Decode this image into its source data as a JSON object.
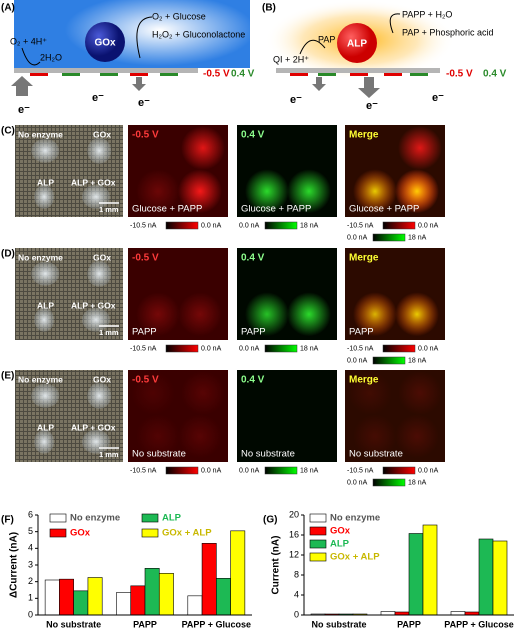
{
  "schematic_a": {
    "label": "(A)",
    "enzyme": "GOx",
    "reaction_top": "O₂ + Glucose",
    "reaction_bottom": "H₂O₂ + Gluconolactone",
    "reactant_left": "O₂ + 4H⁺",
    "product_left": "2H₂O",
    "potential_red": "-0.5 V",
    "potential_green": "0.4 V",
    "electrons": [
      "e⁻",
      "e⁻",
      "e⁻"
    ]
  },
  "schematic_b": {
    "label": "(B)",
    "enzyme": "ALP",
    "reaction_top": "PAPP + H₂O",
    "reaction_bottom": "PAP + Phosphoric acid",
    "intermediate": "PAP",
    "reactant_left": "QI + 2H⁺",
    "potential_red": "-0.5 V",
    "potential_green": "0.4 V",
    "electrons": [
      "e⁻",
      "e⁻",
      "e⁻"
    ]
  },
  "image_rows": [
    {
      "label": "(C)",
      "photo_labels": [
        "No enzyme",
        "GOx",
        "ALP",
        "ALP + GOx"
      ],
      "scale_bar": "1 mm",
      "panel_titles": [
        "-0.5 V",
        "0.4 V",
        "Merge"
      ],
      "substrate": "Glucose + PAPP",
      "colorbar_red": [
        "-10.5 nA",
        "0.0 nA"
      ],
      "colorbar_green": [
        "0.0 nA",
        "18 nA"
      ]
    },
    {
      "label": "(D)",
      "photo_labels": [
        "No enzyme",
        "GOx",
        "ALP",
        "ALP + GOx"
      ],
      "scale_bar": "1 mm",
      "panel_titles": [
        "-0.5 V",
        "0.4 V",
        "Merge"
      ],
      "substrate": "PAPP",
      "colorbar_red": [
        "-10.5 nA",
        "0.0 nA"
      ],
      "colorbar_green": [
        "0.0 nA",
        "18 nA"
      ]
    },
    {
      "label": "(E)",
      "photo_labels": [
        "No enzyme",
        "GOx",
        "ALP",
        "ALP + GOx"
      ],
      "scale_bar": "1 mm",
      "panel_titles": [
        "-0.5 V",
        "0.4 V",
        "Merge"
      ],
      "substrate": "No substrate",
      "colorbar_red": [
        "-10.5 nA",
        "0.0 nA"
      ],
      "colorbar_green": [
        "0.0 nA",
        "18 nA"
      ]
    }
  ],
  "chart_data": [
    {
      "type": "bar",
      "label": "(F)",
      "y_label": "ΔCurrent (nA)",
      "categories": [
        "No substrate",
        "PAPP",
        "PAPP + Glucose"
      ],
      "series": [
        {
          "name": "No enzyme",
          "color": "#ffffff",
          "values": [
            2.1,
            1.35,
            1.15
          ]
        },
        {
          "name": "GOx",
          "color": "#ff0000",
          "values": [
            2.15,
            1.75,
            4.3
          ]
        },
        {
          "name": "ALP",
          "color": "#1db954",
          "values": [
            1.45,
            2.8,
            2.2
          ]
        },
        {
          "name": "GOx + ALP",
          "color": "#ffff00",
          "values": [
            2.25,
            2.5,
            5.05
          ]
        }
      ],
      "ylim": [
        0,
        6
      ],
      "yticks": [
        0,
        1,
        2,
        3,
        4,
        5,
        6
      ],
      "legend": "top",
      "legend_columns": 2
    },
    {
      "type": "bar",
      "label": "(G)",
      "y_label": "Current (nA)",
      "categories": [
        "No substrate",
        "PAPP",
        "PAPP + Glucose"
      ],
      "series": [
        {
          "name": "No enzyme",
          "color": "#ffffff",
          "values": [
            0.2,
            0.7,
            0.7
          ]
        },
        {
          "name": "GOx",
          "color": "#ff0000",
          "values": [
            0.2,
            0.6,
            0.6
          ]
        },
        {
          "name": "ALP",
          "color": "#1db954",
          "values": [
            0.2,
            16.3,
            15.2
          ]
        },
        {
          "name": "GOx + ALP",
          "color": "#ffff00",
          "values": [
            0.2,
            18,
            14.8
          ]
        }
      ],
      "ylim": [
        0,
        20
      ],
      "yticks": [
        0,
        4,
        8,
        12,
        16,
        20
      ],
      "legend": "upper left",
      "legend_columns": 1
    }
  ]
}
